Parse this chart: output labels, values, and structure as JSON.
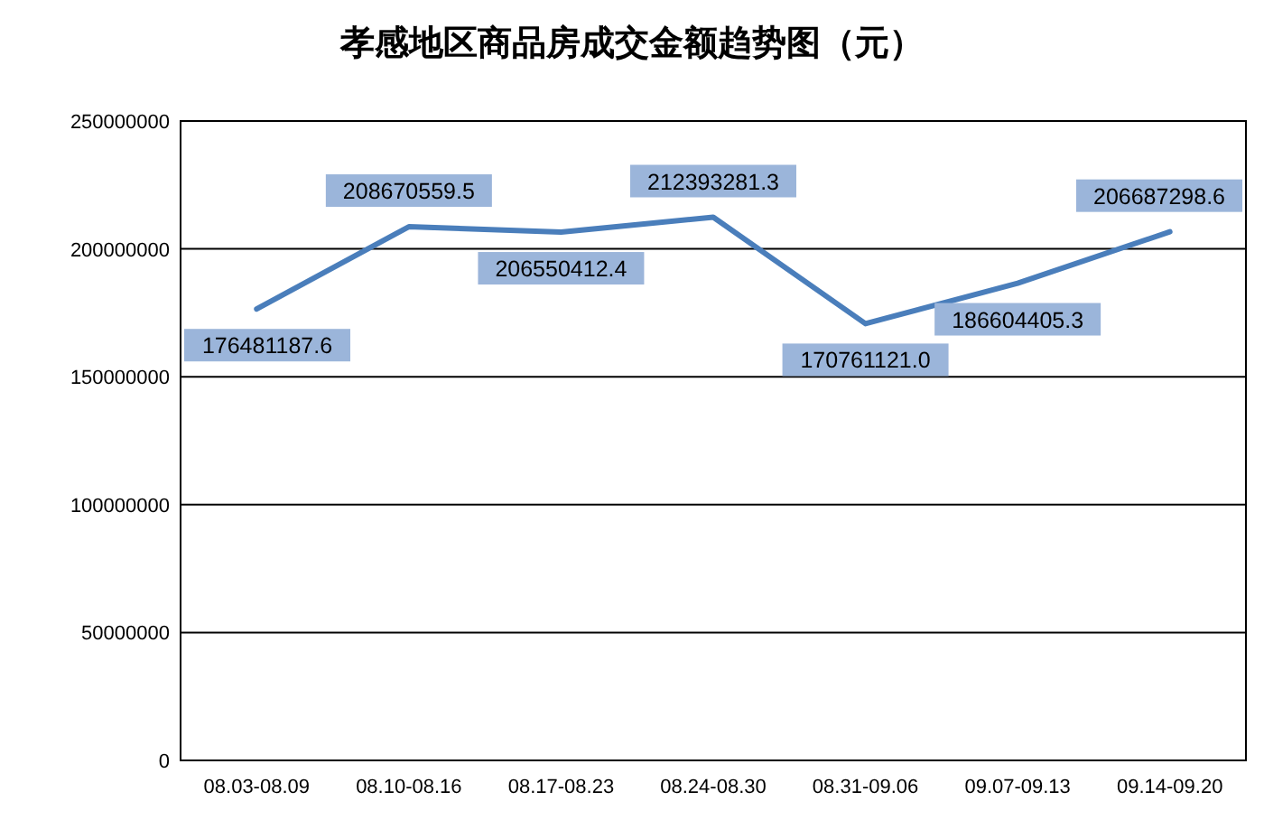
{
  "chart_data": {
    "type": "line",
    "title": "孝感地区商品房成交金额趋势图（元）",
    "categories": [
      "08.03-08.09",
      "08.10-08.16",
      "08.17-08.23",
      "08.24-08.30",
      "08.31-09.06",
      "09.07-09.13",
      "09.14-09.20"
    ],
    "series": [
      {
        "color": "#4a7ebb",
        "values": [
          176481187.6,
          208670559.5,
          206550412.4,
          212393281.3,
          170761121,
          186604405.3,
          206687298.6
        ],
        "value_labels": [
          "176481187.6",
          "208670559.5",
          "206550412.4",
          "212393281.3",
          "170761121.0",
          "186604405.3",
          "206687298.6"
        ]
      }
    ],
    "ylim": [
      0,
      250000000
    ],
    "yticks": [
      0,
      50000000,
      100000000,
      150000000,
      200000000,
      250000000
    ],
    "grid": "y",
    "marker": "none",
    "line_style": "solid"
  }
}
